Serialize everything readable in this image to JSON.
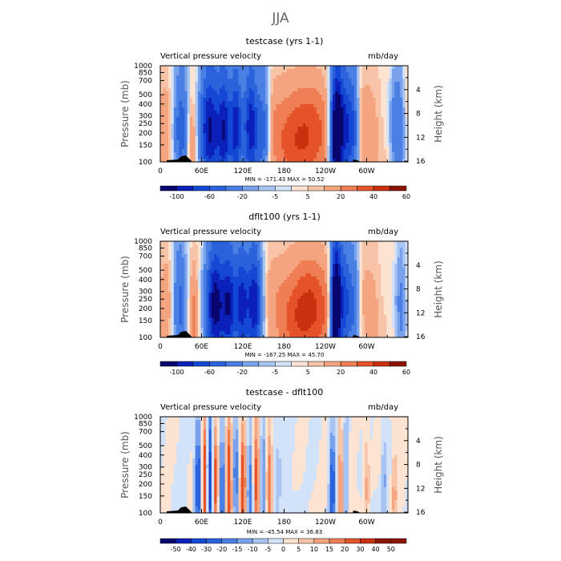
{
  "season": "JJA",
  "chart_data": [
    {
      "type": "heatmap",
      "title": "testcase (yrs 1-1)",
      "left_label": "Vertical pressure velocity",
      "units": "mb/day",
      "ylabel_left": "Pressure (mb)",
      "ylabel_right": "Height (km)",
      "pressure_ticks": [
        "100",
        "150",
        "200",
        "250",
        "300",
        "400",
        "500",
        "700",
        "850",
        "1000"
      ],
      "height_ticks": [
        "4",
        "8",
        "12",
        "16"
      ],
      "lon_ticks": [
        "0",
        "60E",
        "120E",
        "180",
        "120W",
        "60W"
      ],
      "stats": "MIN = -171.43   MAX =  50.52",
      "colorbar_labels": [
        "-100",
        "-60",
        "-20",
        "-5",
        "5",
        "20",
        "40",
        "60"
      ],
      "colorbar_levels": [
        -120,
        -100,
        -80,
        -60,
        -40,
        -20,
        -10,
        -5,
        0,
        5,
        10,
        20,
        30,
        40,
        50,
        60
      ]
    },
    {
      "type": "heatmap",
      "title": "dflt100 (yrs 1-1)",
      "left_label": "Vertical pressure velocity",
      "units": "mb/day",
      "ylabel_left": "Pressure (mb)",
      "ylabel_right": "Height (km)",
      "pressure_ticks": [
        "100",
        "150",
        "200",
        "250",
        "300",
        "400",
        "500",
        "700",
        "850",
        "1000"
      ],
      "height_ticks": [
        "4",
        "8",
        "12",
        "16"
      ],
      "lon_ticks": [
        "0",
        "60E",
        "120E",
        "180",
        "120W",
        "60W"
      ],
      "stats": "MIN = -167.25   MAX =  45.70",
      "colorbar_labels": [
        "-100",
        "-60",
        "-20",
        "-5",
        "5",
        "20",
        "40",
        "60"
      ],
      "colorbar_levels": [
        -120,
        -100,
        -80,
        -60,
        -40,
        -20,
        -10,
        -5,
        0,
        5,
        10,
        20,
        30,
        40,
        50,
        60
      ]
    },
    {
      "type": "heatmap",
      "title": "testcase - dflt100",
      "left_label": "Vertical pressure velocity",
      "units": "mb/day",
      "ylabel_left": "Pressure (mb)",
      "ylabel_right": "Height (km)",
      "pressure_ticks": [
        "100",
        "150",
        "200",
        "250",
        "300",
        "400",
        "500",
        "700",
        "850",
        "1000"
      ],
      "height_ticks": [
        "4",
        "8",
        "12",
        "16"
      ],
      "lon_ticks": [
        "0",
        "60E",
        "120E",
        "180",
        "120W",
        "60W"
      ],
      "stats": "MIN = -45.54   MAX =  36.83",
      "colorbar_labels": [
        "-50",
        "-40",
        "-30",
        "-20",
        "-15",
        "-10",
        "-5",
        "0",
        "5",
        "10",
        "15",
        "20",
        "30",
        "40",
        "50"
      ],
      "colorbar_levels": [
        -60,
        -50,
        -40,
        -30,
        -20,
        -15,
        -10,
        -5,
        0,
        5,
        10,
        15,
        20,
        30,
        40,
        50,
        60
      ]
    }
  ],
  "colors": {
    "palette": [
      "#08066e",
      "#0a20b8",
      "#1447d4",
      "#2a63dc",
      "#4a80e4",
      "#7aa2ec",
      "#a8c4f2",
      "#d2e2f8",
      "#fde3d2",
      "#f8c4a8",
      "#f5a480",
      "#ef7e55",
      "#e5532a",
      "#c8300e",
      "#8b1505"
    ],
    "terrain": "#000000"
  }
}
